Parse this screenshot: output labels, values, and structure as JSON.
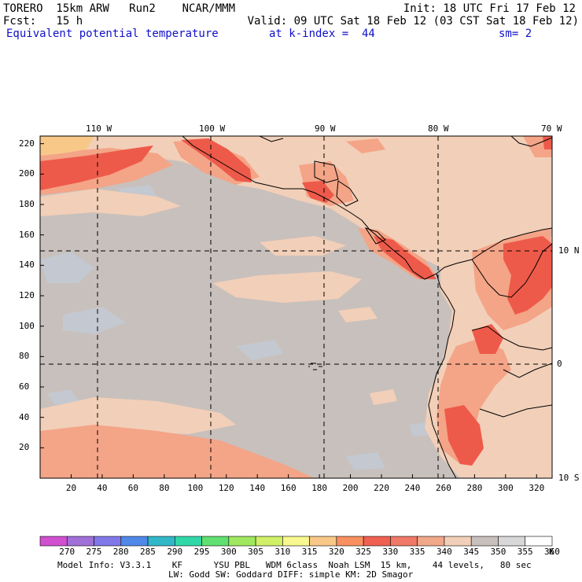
{
  "header": {
    "line1_left": "TORERO  15km ARW   Run2    NCAR/MMM",
    "line1_right": "Init: 18 UTC Fri 17 Feb 12",
    "line2_left": "Fcst:   15 h",
    "line2_right": "Valid: 09 UTC Sat 18 Feb 12 (03 CST Sat 18 Feb 12)",
    "line3_left": "Equivalent potential temperature",
    "line3_mid": "at k-index =  44",
    "line3_right": "sm= 2"
  },
  "map": {
    "lon_labels": [
      "110 W",
      "100 W",
      "90 W",
      "80 W",
      "70 W"
    ],
    "lat_labels": [
      "10 N",
      "0",
      "10 S"
    ],
    "y_ticks": [
      "220",
      "200",
      "180",
      "160",
      "140",
      "120",
      "100",
      "80",
      "60",
      "40",
      "20"
    ],
    "x_ticks": [
      "20",
      "40",
      "60",
      "80",
      "100",
      "120",
      "140",
      "160",
      "180",
      "200",
      "220",
      "240",
      "260",
      "280",
      "300",
      "320"
    ],
    "colors": {
      "ocean_grey": "#c8c0bc",
      "light_blue_grey": "#c4c8d0",
      "peach": "#f2cfb8",
      "salmon": "#f4a487",
      "red": "#ee5a4a",
      "orange": "#f8c888",
      "coast": "#000000"
    }
  },
  "colorbar": {
    "labels": [
      "270",
      "275",
      "280",
      "285",
      "290",
      "295",
      "300",
      "305",
      "310",
      "315",
      "320",
      "325",
      "330",
      "335",
      "340",
      "345",
      "350",
      "355",
      "360"
    ],
    "unit": "K",
    "colors": [
      "#d050d0",
      "#a070d8",
      "#8078e8",
      "#5088e8",
      "#30b8c8",
      "#30d8a8",
      "#60e070",
      "#a0e860",
      "#d0f068",
      "#f8f890",
      "#f8c888",
      "#f89060",
      "#f06050",
      "#f07868",
      "#f0a888",
      "#f2cfb8",
      "#c8c0bc",
      "#d8d8d8",
      "#ffffff"
    ]
  },
  "footer": {
    "line1": "Model Info: V3.3.1    KF      YSU PBL   WDM 6class  Noah LSM  15 km,    44 levels,   80 sec",
    "line2": "LW: Godd SW: Goddard DIFF: simple KM: 2D Smagor"
  }
}
